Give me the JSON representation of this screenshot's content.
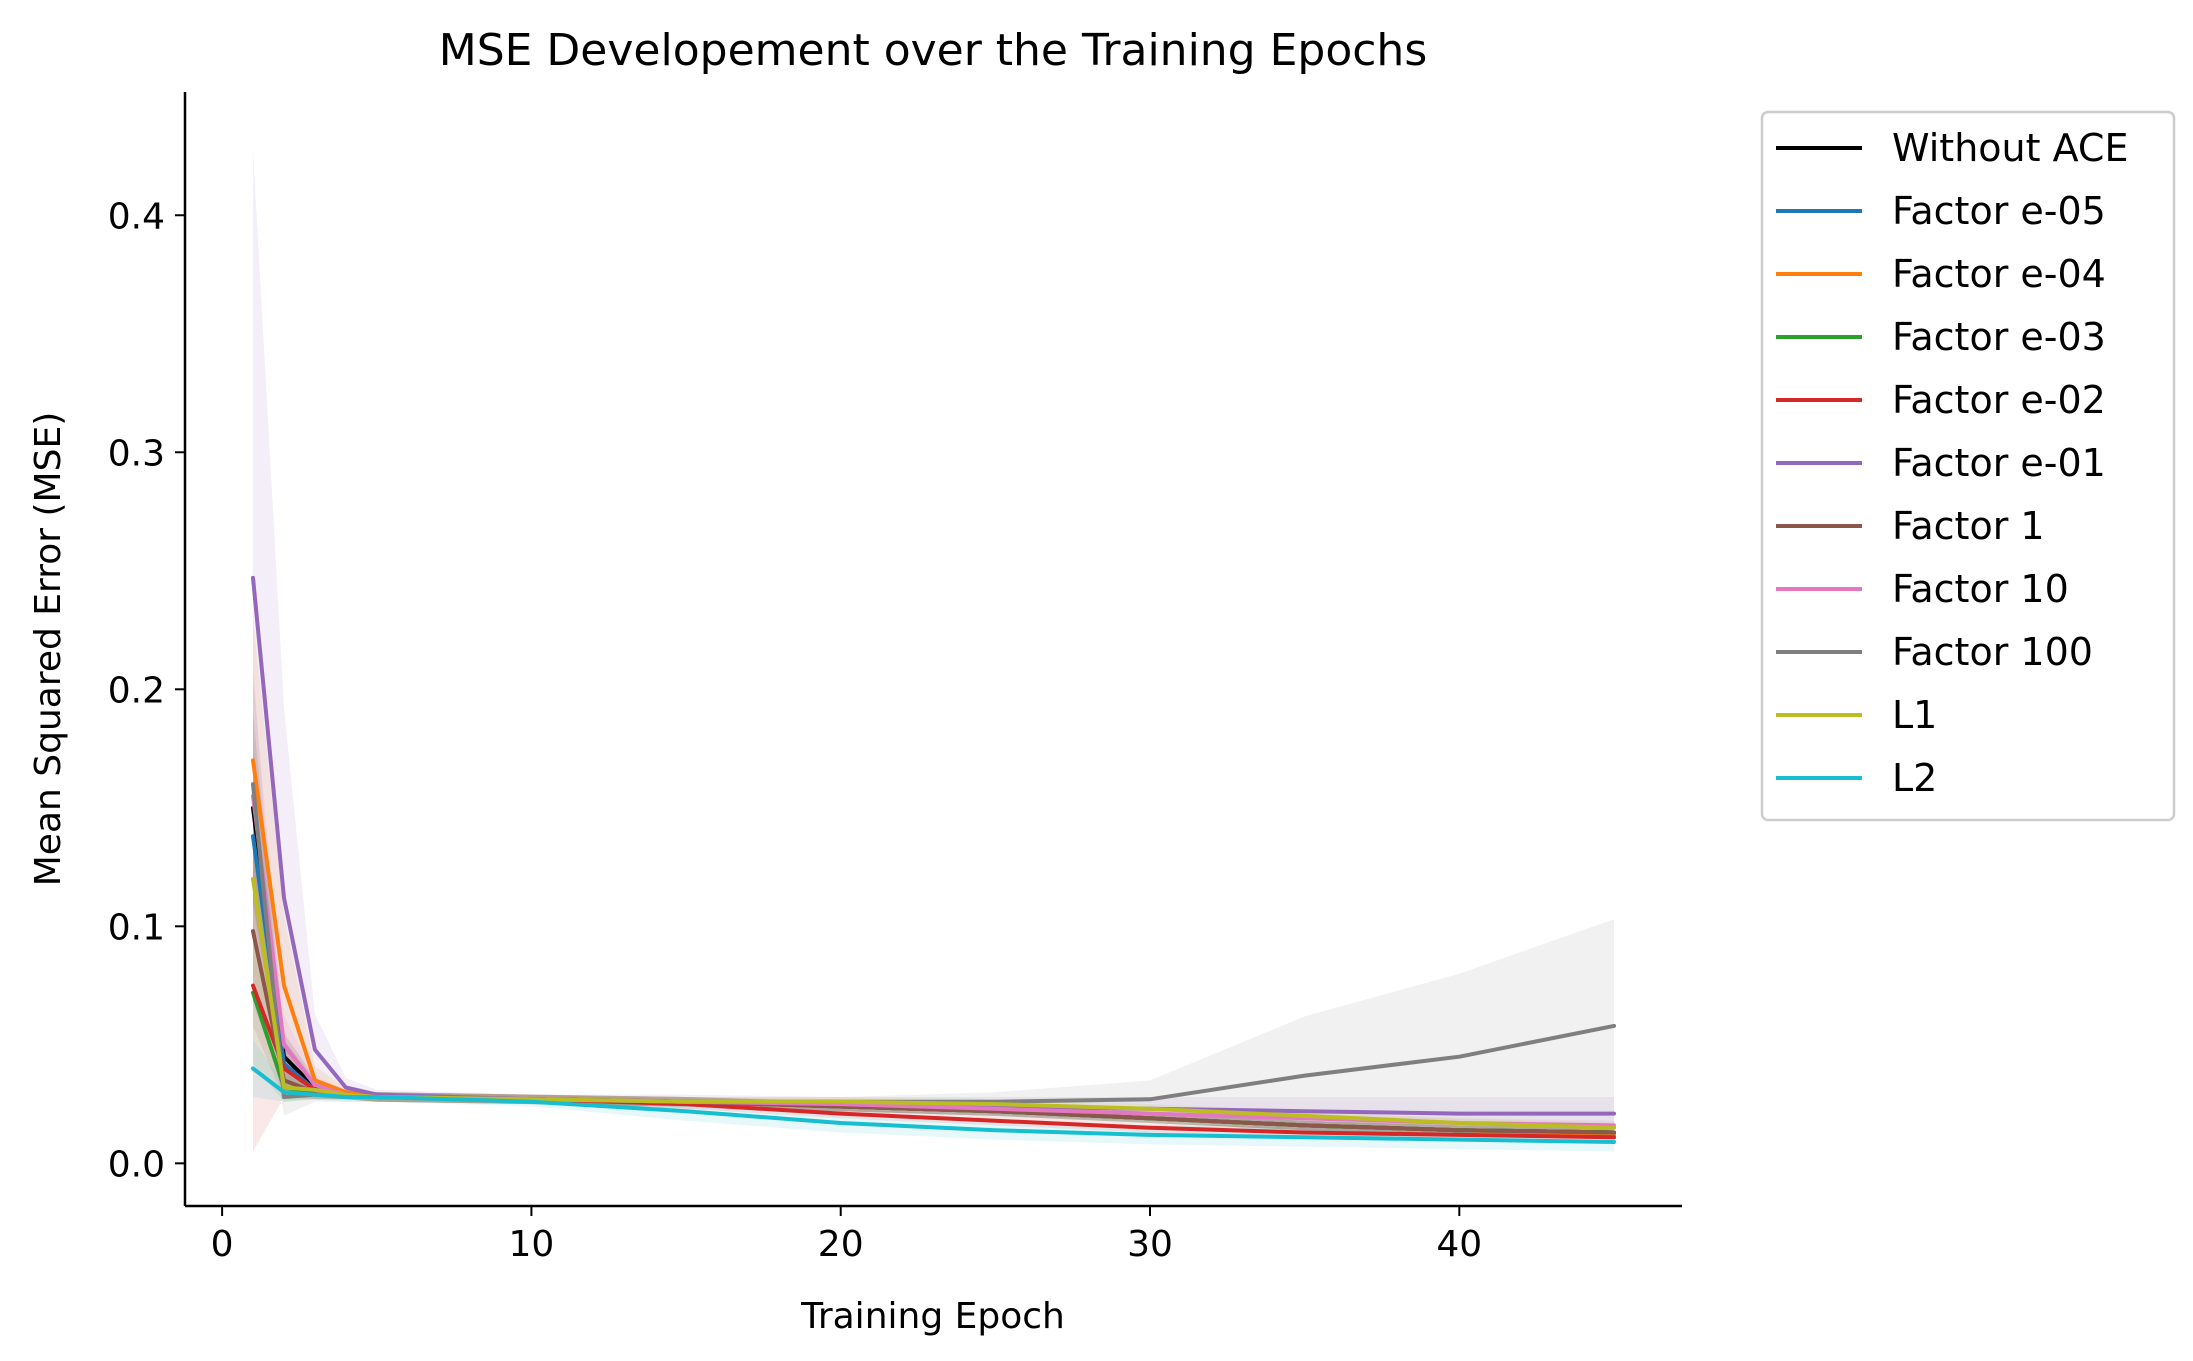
{
  "chart_data": {
    "type": "line",
    "title": "MSE Developement over the Training Epochs",
    "xlabel": "Training Epoch",
    "ylabel": "Mean Squared Error (MSE)",
    "xlim": [
      -1.2,
      47.2
    ],
    "ylim": [
      -0.018,
      0.452
    ],
    "xticks": [
      0,
      10,
      20,
      30,
      40
    ],
    "yticks": [
      0.0,
      0.1,
      0.2,
      0.3,
      0.4
    ],
    "xtick_labels": [
      "0",
      "10",
      "20",
      "30",
      "40"
    ],
    "ytick_labels": [
      "0.0",
      "0.1",
      "0.2",
      "0.3",
      "0.4"
    ],
    "grid": false,
    "legend_position": "outside-right",
    "x": [
      1,
      2,
      3,
      4,
      5,
      10,
      15,
      20,
      25,
      30,
      35,
      40,
      45
    ],
    "series": [
      {
        "name": "Without ACE",
        "color": "#000000",
        "values": [
          0.15,
          0.045,
          0.032,
          0.029,
          0.028,
          0.027,
          0.026,
          0.024,
          0.022,
          0.019,
          0.016,
          0.014,
          0.013
        ],
        "band": [
          0.04,
          0.01,
          0.004,
          0.002,
          0.002,
          0.002,
          0.002,
          0.002,
          0.002,
          0.002,
          0.002,
          0.002,
          0.002
        ]
      },
      {
        "name": "Factor e-05",
        "color": "#1f77b4",
        "values": [
          0.138,
          0.042,
          0.031,
          0.029,
          0.028,
          0.027,
          0.026,
          0.024,
          0.022,
          0.019,
          0.016,
          0.014,
          0.013
        ],
        "band": [
          0.04,
          0.01,
          0.004,
          0.002,
          0.002,
          0.002,
          0.002,
          0.002,
          0.002,
          0.002,
          0.002,
          0.002,
          0.002
        ]
      },
      {
        "name": "Factor e-04",
        "color": "#ff7f0e",
        "values": [
          0.17,
          0.075,
          0.035,
          0.03,
          0.028,
          0.027,
          0.026,
          0.024,
          0.022,
          0.019,
          0.016,
          0.014,
          0.012
        ],
        "band": [
          0.06,
          0.03,
          0.006,
          0.002,
          0.002,
          0.002,
          0.002,
          0.002,
          0.002,
          0.002,
          0.002,
          0.002,
          0.002
        ]
      },
      {
        "name": "Factor e-03",
        "color": "#2ca02c",
        "values": [
          0.072,
          0.032,
          0.03,
          0.029,
          0.028,
          0.027,
          0.026,
          0.024,
          0.022,
          0.019,
          0.016,
          0.014,
          0.013
        ],
        "band": [
          0.03,
          0.006,
          0.003,
          0.002,
          0.002,
          0.002,
          0.002,
          0.002,
          0.002,
          0.002,
          0.002,
          0.002,
          0.002
        ]
      },
      {
        "name": "Factor e-02",
        "color": "#d62728",
        "values": [
          0.075,
          0.04,
          0.031,
          0.029,
          0.028,
          0.027,
          0.025,
          0.021,
          0.018,
          0.015,
          0.013,
          0.012,
          0.011
        ],
        "band": [
          0.07,
          0.012,
          0.004,
          0.002,
          0.002,
          0.002,
          0.002,
          0.002,
          0.002,
          0.002,
          0.002,
          0.002,
          0.002
        ]
      },
      {
        "name": "Factor e-01",
        "color": "#9467bd",
        "values": [
          0.247,
          0.112,
          0.048,
          0.032,
          0.029,
          0.027,
          0.026,
          0.025,
          0.024,
          0.023,
          0.022,
          0.021,
          0.021
        ],
        "band": [
          0.18,
          0.08,
          0.015,
          0.004,
          0.002,
          0.002,
          0.003,
          0.003,
          0.004,
          0.005,
          0.006,
          0.007,
          0.007
        ]
      },
      {
        "name": "Factor 1",
        "color": "#8c564b",
        "values": [
          0.098,
          0.035,
          0.03,
          0.029,
          0.028,
          0.027,
          0.026,
          0.024,
          0.022,
          0.019,
          0.016,
          0.014,
          0.013
        ],
        "band": [
          0.04,
          0.008,
          0.003,
          0.002,
          0.002,
          0.002,
          0.002,
          0.002,
          0.002,
          0.002,
          0.002,
          0.002,
          0.002
        ]
      },
      {
        "name": "Factor 10",
        "color": "#e377c2",
        "values": [
          0.155,
          0.05,
          0.033,
          0.029,
          0.028,
          0.027,
          0.026,
          0.025,
          0.023,
          0.021,
          0.019,
          0.017,
          0.016
        ],
        "band": [
          0.05,
          0.012,
          0.004,
          0.002,
          0.002,
          0.002,
          0.002,
          0.002,
          0.002,
          0.002,
          0.002,
          0.002,
          0.002
        ]
      },
      {
        "name": "Factor 100",
        "color": "#7f7f7f",
        "values": [
          0.16,
          0.028,
          0.029,
          0.028,
          0.028,
          0.027,
          0.026,
          0.026,
          0.026,
          0.027,
          0.037,
          0.045,
          0.058
        ],
        "band": [
          0.05,
          0.008,
          0.003,
          0.002,
          0.002,
          0.002,
          0.002,
          0.002,
          0.004,
          0.008,
          0.025,
          0.035,
          0.045
        ]
      },
      {
        "name": "L1",
        "color": "#bcbd22",
        "values": [
          0.12,
          0.032,
          0.031,
          0.029,
          0.028,
          0.027,
          0.026,
          0.026,
          0.025,
          0.023,
          0.02,
          0.017,
          0.015
        ],
        "band": [
          0.04,
          0.006,
          0.003,
          0.002,
          0.002,
          0.002,
          0.002,
          0.002,
          0.002,
          0.002,
          0.002,
          0.002,
          0.002
        ]
      },
      {
        "name": "L2",
        "color": "#17becf",
        "values": [
          0.04,
          0.03,
          0.029,
          0.028,
          0.028,
          0.026,
          0.022,
          0.017,
          0.014,
          0.012,
          0.011,
          0.01,
          0.009
        ],
        "band": [
          0.012,
          0.004,
          0.002,
          0.002,
          0.002,
          0.002,
          0.004,
          0.004,
          0.004,
          0.004,
          0.004,
          0.004,
          0.004
        ]
      }
    ]
  }
}
